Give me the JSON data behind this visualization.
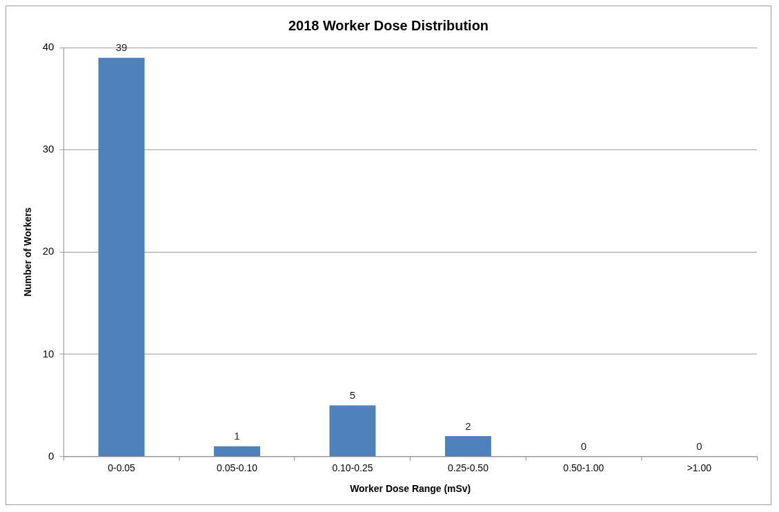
{
  "chart_data": {
    "type": "bar",
    "title": "2018 Worker Dose Distribution",
    "xlabel": "Worker Dose Range (mSv)",
    "ylabel": "Number of Workers",
    "categories": [
      "0-0.05",
      "0.05-0.10",
      "0.10-0.25",
      "0.25-0.50",
      "0.50-1.00",
      ">1.00"
    ],
    "values": [
      39,
      1,
      5,
      2,
      0,
      0
    ],
    "color": "#4f81bd",
    "ylim": [
      0,
      40
    ],
    "yticks": [
      0,
      10,
      20,
      30,
      40
    ],
    "grid": "y",
    "data_labels": true
  }
}
